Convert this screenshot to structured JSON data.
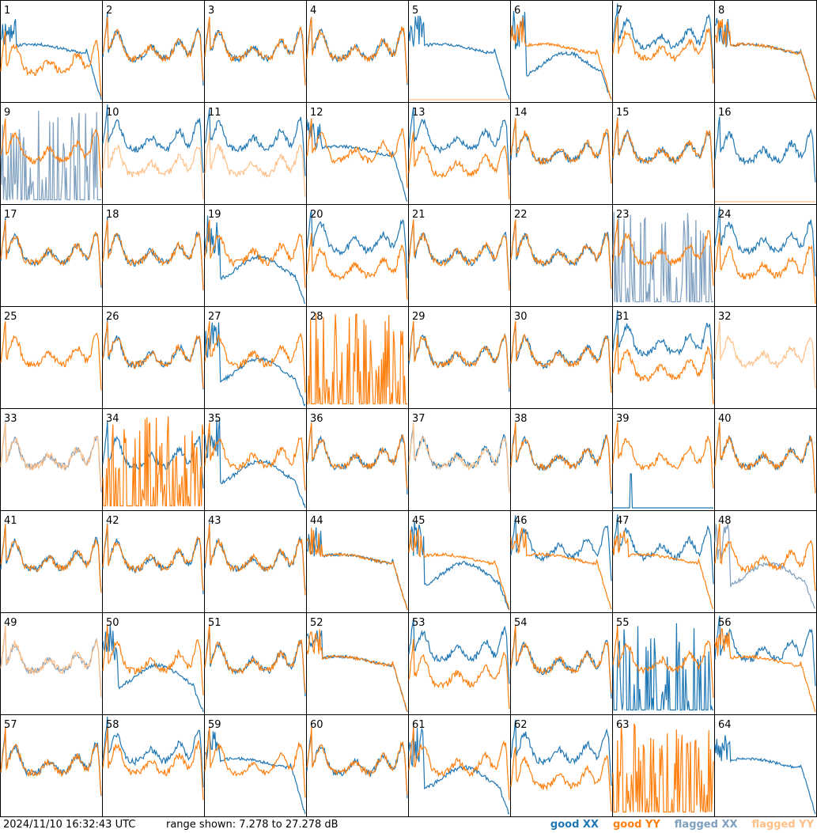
{
  "chart_data": {
    "type": "line",
    "layout": "8x8 grid of small-multiple spectra",
    "timestamp": "2024/11/10 16:32:43 UTC",
    "range_text": "range shown: 7.278 to 27.278 dB",
    "ylim_db": [
      7.278,
      27.278
    ],
    "legend": [
      "good XX",
      "good YY",
      "flagged XX",
      "flagged YY"
    ],
    "colors": {
      "good_xx": "#1f77b4",
      "good_yy": "#ff7f0e",
      "flagged_xx": "#7f9fbf",
      "flagged_yy": "#ffbf87"
    },
    "panels": [
      {
        "id": "1",
        "xx": "droop",
        "yy": "low",
        "xxf": 0,
        "yyf": 0
      },
      {
        "id": "2",
        "xx": "std",
        "yy": "std",
        "xxf": 0,
        "yyf": 0
      },
      {
        "id": "3",
        "xx": "std",
        "yy": "std",
        "xxf": 0,
        "yyf": 0
      },
      {
        "id": "4",
        "xx": "std",
        "yy": "std",
        "xxf": 0,
        "yyf": 0
      },
      {
        "id": "5",
        "xx": "droop",
        "yy": "dead",
        "xxf": 0,
        "yyf": 1
      },
      {
        "id": "6",
        "xx": "sag",
        "yy": "droop",
        "xxf": 0,
        "yyf": 0
      },
      {
        "id": "7",
        "xx": "high",
        "yy": "std",
        "xxf": 0,
        "yyf": 0
      },
      {
        "id": "8",
        "xx": "droop",
        "yy": "droop",
        "xxf": 0,
        "yyf": 0
      },
      {
        "id": "9",
        "xx": "spiky",
        "yy": "std",
        "xxf": 1,
        "yyf": 0
      },
      {
        "id": "10",
        "xx": "high",
        "yy": "low",
        "xxf": 0,
        "yyf": 1
      },
      {
        "id": "11",
        "xx": "high",
        "yy": "low",
        "xxf": 0,
        "yyf": 1
      },
      {
        "id": "12",
        "xx": "droop",
        "yy": "std",
        "xxf": 0,
        "yyf": 0
      },
      {
        "id": "13",
        "xx": "high",
        "yy": "low",
        "xxf": 0,
        "yyf": 0
      },
      {
        "id": "14",
        "xx": "std",
        "yy": "std",
        "xxf": 0,
        "yyf": 0
      },
      {
        "id": "15",
        "xx": "std",
        "yy": "std",
        "xxf": 0,
        "yyf": 0
      },
      {
        "id": "16",
        "xx": "std",
        "yy": "dead",
        "xxf": 0,
        "yyf": 1
      },
      {
        "id": "17",
        "xx": "std",
        "yy": "std",
        "xxf": 0,
        "yyf": 0
      },
      {
        "id": "18",
        "xx": "std",
        "yy": "std",
        "xxf": 0,
        "yyf": 0
      },
      {
        "id": "19",
        "xx": "sag",
        "yy": "std",
        "xxf": 0,
        "yyf": 0
      },
      {
        "id": "20",
        "xx": "high",
        "yy": "low",
        "xxf": 0,
        "yyf": 0
      },
      {
        "id": "21",
        "xx": "std",
        "yy": "std",
        "xxf": 0,
        "yyf": 0
      },
      {
        "id": "22",
        "xx": "std",
        "yy": "std",
        "xxf": 0,
        "yyf": 0
      },
      {
        "id": "23",
        "xx": "spiky",
        "yy": "std",
        "xxf": 1,
        "yyf": 0
      },
      {
        "id": "24",
        "xx": "high",
        "yy": "low",
        "xxf": 0,
        "yyf": 0
      },
      {
        "id": "25",
        "xx": "none",
        "yy": "std",
        "xxf": 0,
        "yyf": 0
      },
      {
        "id": "26",
        "xx": "std",
        "yy": "std",
        "xxf": 0,
        "yyf": 0
      },
      {
        "id": "27",
        "xx": "sag",
        "yy": "std",
        "xxf": 0,
        "yyf": 0
      },
      {
        "id": "28",
        "xx": "none",
        "yy": "spiky",
        "xxf": 0,
        "yyf": 0
      },
      {
        "id": "29",
        "xx": "std",
        "yy": "std",
        "xxf": 0,
        "yyf": 0
      },
      {
        "id": "30",
        "xx": "std",
        "yy": "std",
        "xxf": 0,
        "yyf": 0
      },
      {
        "id": "31",
        "xx": "high",
        "yy": "low",
        "xxf": 0,
        "yyf": 0
      },
      {
        "id": "32",
        "xx": "none",
        "yy": "std",
        "xxf": 0,
        "yyf": 1
      },
      {
        "id": "33",
        "xx": "std",
        "yy": "std",
        "xxf": 1,
        "yyf": 1
      },
      {
        "id": "34",
        "xx": "std",
        "yy": "spiky",
        "xxf": 0,
        "yyf": 0
      },
      {
        "id": "35",
        "xx": "sag",
        "yy": "std",
        "xxf": 0,
        "yyf": 0
      },
      {
        "id": "36",
        "xx": "std",
        "yy": "std",
        "xxf": 0,
        "yyf": 0
      },
      {
        "id": "37",
        "xx": "std",
        "yy": "std",
        "xxf": 0,
        "yyf": 1
      },
      {
        "id": "38",
        "xx": "std",
        "yy": "std",
        "xxf": 0,
        "yyf": 0
      },
      {
        "id": "39",
        "xx": "spike",
        "yy": "std",
        "xxf": 0,
        "yyf": 0
      },
      {
        "id": "40",
        "xx": "std",
        "yy": "std",
        "xxf": 0,
        "yyf": 0
      },
      {
        "id": "41",
        "xx": "std",
        "yy": "std",
        "xxf": 0,
        "yyf": 0
      },
      {
        "id": "42",
        "xx": "std",
        "yy": "std",
        "xxf": 0,
        "yyf": 0
      },
      {
        "id": "43",
        "xx": "std",
        "yy": "std",
        "xxf": 0,
        "yyf": 0
      },
      {
        "id": "44",
        "xx": "droop",
        "yy": "droop",
        "xxf": 0,
        "yyf": 0
      },
      {
        "id": "45",
        "xx": "sag",
        "yy": "droop",
        "xxf": 0,
        "yyf": 0
      },
      {
        "id": "46",
        "xx": "high",
        "yy": "droop",
        "xxf": 0,
        "yyf": 0
      },
      {
        "id": "47",
        "xx": "high",
        "yy": "droop",
        "xxf": 0,
        "yyf": 0
      },
      {
        "id": "48",
        "xx": "sag",
        "yy": "std",
        "xxf": 1,
        "yyf": 0
      },
      {
        "id": "49",
        "xx": "std",
        "yy": "std",
        "xxf": 1,
        "yyf": 1
      },
      {
        "id": "50",
        "xx": "sag",
        "yy": "std",
        "xxf": 0,
        "yyf": 0
      },
      {
        "id": "51",
        "xx": "std",
        "yy": "std",
        "xxf": 0,
        "yyf": 0
      },
      {
        "id": "52",
        "xx": "droop",
        "yy": "droop",
        "xxf": 0,
        "yyf": 0
      },
      {
        "id": "53",
        "xx": "high",
        "yy": "low",
        "xxf": 0,
        "yyf": 0
      },
      {
        "id": "54",
        "xx": "std",
        "yy": "std",
        "xxf": 0,
        "yyf": 0
      },
      {
        "id": "55",
        "xx": "spiky",
        "yy": "std",
        "xxf": 0,
        "yyf": 0
      },
      {
        "id": "56",
        "xx": "high",
        "yy": "droop",
        "xxf": 0,
        "yyf": 0
      },
      {
        "id": "57",
        "xx": "std",
        "yy": "std",
        "xxf": 0,
        "yyf": 0
      },
      {
        "id": "58",
        "xx": "high",
        "yy": "std",
        "xxf": 0,
        "yyf": 0
      },
      {
        "id": "59",
        "xx": "droop",
        "yy": "std",
        "xxf": 0,
        "yyf": 0
      },
      {
        "id": "60",
        "xx": "std",
        "yy": "std",
        "xxf": 0,
        "yyf": 0
      },
      {
        "id": "61",
        "xx": "sag",
        "yy": "std",
        "xxf": 0,
        "yyf": 0
      },
      {
        "id": "62",
        "xx": "high",
        "yy": "low",
        "xxf": 0,
        "yyf": 0
      },
      {
        "id": "63",
        "xx": "none",
        "yy": "spiky",
        "xxf": 0,
        "yyf": 0
      },
      {
        "id": "64",
        "xx": "droop",
        "yy": "none",
        "xxf": 0,
        "yyf": 0
      }
    ]
  }
}
